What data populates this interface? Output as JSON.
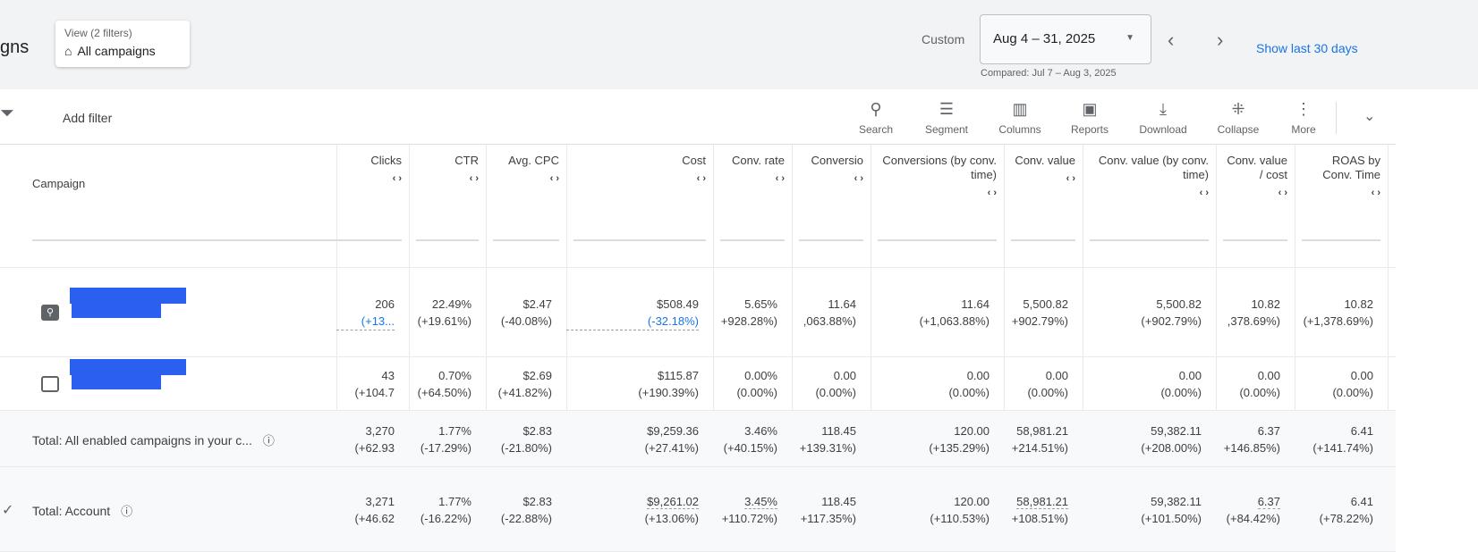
{
  "header": {
    "title": "gns",
    "view": {
      "filters": "View (2 filters)",
      "name": "All campaigns"
    },
    "date": {
      "preset": "Custom",
      "range": "Aug 4 – 31, 2025",
      "compared": "Compared: Jul 7 – Aug 3, 2025",
      "show_last": "Show last 30 days"
    }
  },
  "toolbar": {
    "add_filter": "Add filter",
    "buttons": [
      {
        "label": "Search",
        "icon": "search-icon"
      },
      {
        "label": "Segment",
        "icon": "segment-icon"
      },
      {
        "label": "Columns",
        "icon": "columns-icon"
      },
      {
        "label": "Reports",
        "icon": "reports-icon"
      },
      {
        "label": "Download",
        "icon": "download-icon"
      },
      {
        "label": "Collapse",
        "icon": "collapse-icon"
      },
      {
        "label": "More",
        "icon": "more-icon"
      }
    ]
  },
  "columns": [
    "Campaign",
    "Clicks",
    "CTR",
    "Avg. CPC",
    "Cost",
    "Conv. rate",
    "Conversio",
    "Conversions (by conv. time)",
    "Conv. value",
    "Conv. value (by conv. time)",
    "Conv. value / cost",
    "ROAS by Conv. Time"
  ],
  "rows": [
    {
      "type": "campaign",
      "icon": "search-campaign-icon",
      "cells": [
        [
          "206",
          "(+13..."
        ],
        [
          "22.49%",
          "(+19.61%)"
        ],
        [
          "$2.47",
          "(-40.08%)"
        ],
        [
          "$508.49",
          "(-32.18%)"
        ],
        [
          "5.65%",
          "+928.28%)"
        ],
        [
          "11.64",
          ",063.88%)"
        ],
        [
          "11.64",
          "(+1,063.88%)"
        ],
        [
          "5,500.82",
          "+902.79%)"
        ],
        [
          "5,500.82",
          "(+902.79%)"
        ],
        [
          "10.82",
          ",378.69%)"
        ],
        [
          "10.82",
          "(+1,378.69%)"
        ]
      ]
    },
    {
      "type": "campaign",
      "icon": "display-campaign-icon",
      "cells": [
        [
          "43",
          "(+104.7"
        ],
        [
          "0.70%",
          "(+64.50%)"
        ],
        [
          "$2.69",
          "(+41.82%)"
        ],
        [
          "$115.87",
          "(+190.39%)"
        ],
        [
          "0.00%",
          "(0.00%)"
        ],
        [
          "0.00",
          "(0.00%)"
        ],
        [
          "0.00",
          "(0.00%)"
        ],
        [
          "0.00",
          "(0.00%)"
        ],
        [
          "0.00",
          "(0.00%)"
        ],
        [
          "0.00",
          "(0.00%)"
        ],
        [
          "0.00",
          "(0.00%)"
        ]
      ]
    },
    {
      "type": "total",
      "label": "Total: All enabled campaigns in your c...",
      "cells": [
        [
          "3,270",
          "(+62.93"
        ],
        [
          "1.77%",
          "(-17.29%)"
        ],
        [
          "$2.83",
          "(-21.80%)"
        ],
        [
          "$9,259.36",
          "(+27.41%)"
        ],
        [
          "3.46%",
          "(+40.15%)"
        ],
        [
          "118.45",
          "+139.31%)"
        ],
        [
          "120.00",
          "(+135.29%)"
        ],
        [
          "58,981.21",
          "+214.51%)"
        ],
        [
          "59,382.11",
          "(+208.00%)"
        ],
        [
          "6.37",
          "+146.85%)"
        ],
        [
          "6.41",
          "(+141.74%)"
        ]
      ]
    },
    {
      "type": "total",
      "label": "Total: Account",
      "cells": [
        [
          "3,271",
          "(+46.62"
        ],
        [
          "1.77%",
          "(-16.22%)"
        ],
        [
          "$2.83",
          "(-22.88%)"
        ],
        [
          "$9,261.02",
          "(+13.06%)"
        ],
        [
          "3.45%",
          "+110.72%)"
        ],
        [
          "118.45",
          "+117.35%)"
        ],
        [
          "120.00",
          "(+110.53%)"
        ],
        [
          "58,981.21",
          "+108.51%)"
        ],
        [
          "59,382.11",
          "(+101.50%)"
        ],
        [
          "6.37",
          "(+84.42%)"
        ],
        [
          "6.41",
          "(+78.22%)"
        ]
      ]
    }
  ],
  "colors": {
    "accent": "#1a73e8",
    "redaction": "#2a5ff0"
  }
}
